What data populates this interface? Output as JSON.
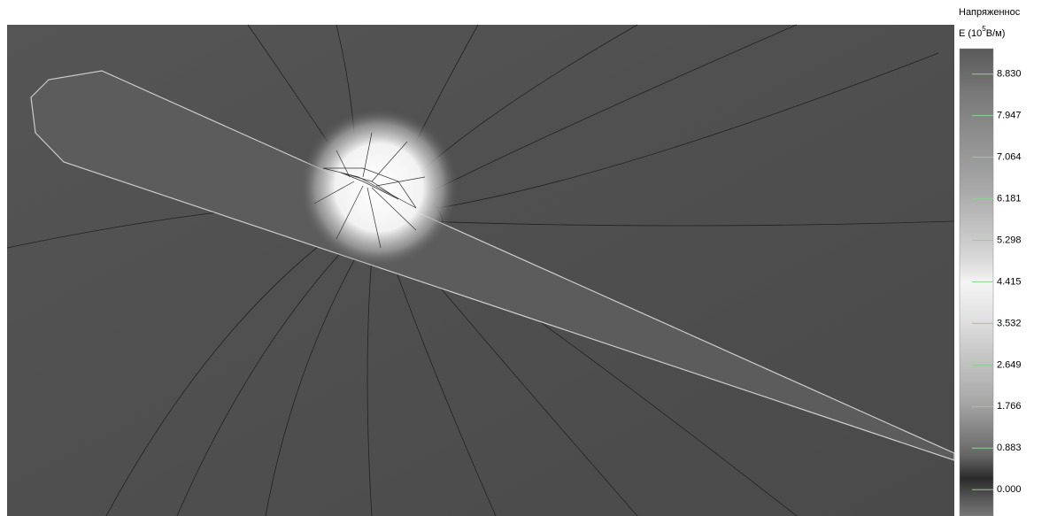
{
  "legend": {
    "title_line1": "Напряженнос",
    "title_line2_prefix": "Е (10",
    "title_line2_sup": "5",
    "title_line2_suffix": "В/м)",
    "lim": [
      -0.56,
      9.37
    ],
    "ticks": [
      {
        "value": 8.83,
        "label": "8.830"
      },
      {
        "value": 7.947,
        "label": "7.947"
      },
      {
        "value": 7.064,
        "label": "7.064"
      },
      {
        "value": 6.181,
        "label": "6.181"
      },
      {
        "value": 5.298,
        "label": "5.298"
      },
      {
        "value": 4.415,
        "label": "4.415"
      },
      {
        "value": 3.532,
        "label": "3.532"
      },
      {
        "value": 2.649,
        "label": "2.649"
      },
      {
        "value": 1.766,
        "label": "1.766"
      },
      {
        "value": 0.883,
        "label": "0.883"
      },
      {
        "value": 0,
        "label": "0.000"
      }
    ]
  }
}
